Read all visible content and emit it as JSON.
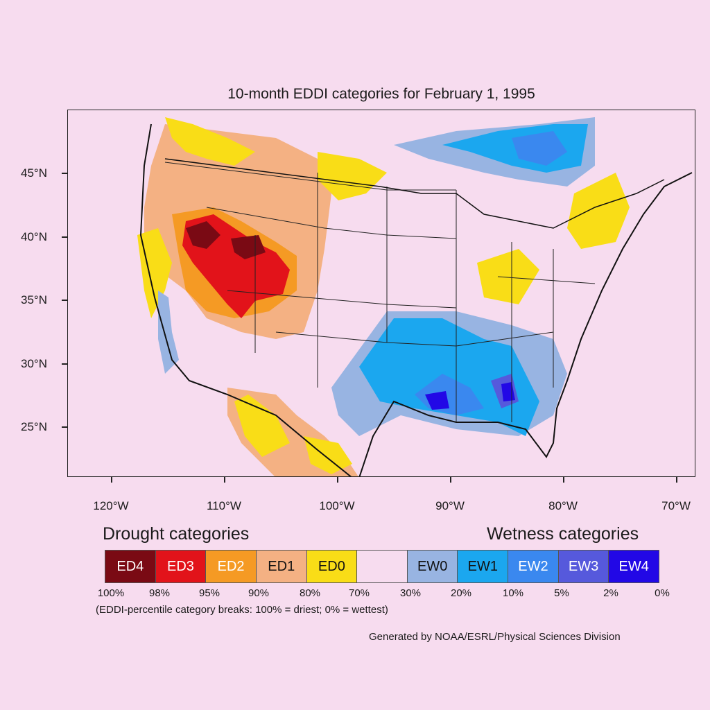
{
  "title": "10-month EDDI categories for February 1, 1995",
  "map": {
    "lat_labels": [
      {
        "text": "45°N",
        "lat": 45
      },
      {
        "text": "40°N",
        "lat": 40
      },
      {
        "text": "35°N",
        "lat": 35
      },
      {
        "text": "30°N",
        "lat": 30
      },
      {
        "text": "25°N",
        "lat": 25
      }
    ],
    "lon_labels": [
      {
        "text": "120°W",
        "lon": -120
      },
      {
        "text": "110°W",
        "lon": -110
      },
      {
        "text": "100°W",
        "lon": -100
      },
      {
        "text": "90°W",
        "lon": -90
      },
      {
        "text": "80°W",
        "lon": -80
      },
      {
        "text": "70°W",
        "lon": -70
      }
    ],
    "lon_range": [
      -124,
      -68.5
    ],
    "lat_range": [
      20.9,
      49.7
    ],
    "colors": {
      "ED4": "#7a0a14",
      "ED3": "#e2131a",
      "ED2": "#f59a24",
      "ED1": "#f4b183",
      "ED0": "#f9dd17",
      "NONE": "#f7dcef",
      "EW0": "#98b4e2",
      "EW1": "#1ba7ef",
      "EW2": "#3a88ef",
      "EW3": "#5659dc",
      "EW4": "#2208e6"
    }
  },
  "legend": {
    "drought_heading": "Drought categories",
    "wetness_heading": "Wetness categories",
    "categories": [
      {
        "label": "ED4",
        "color": "#7a0a14",
        "text_color": "#ffffff"
      },
      {
        "label": "ED3",
        "color": "#e2131a",
        "text_color": "#ffffff"
      },
      {
        "label": "ED2",
        "color": "#f59a24",
        "text_color": "#ffffff"
      },
      {
        "label": "ED1",
        "color": "#f4b183",
        "text_color": "#111111"
      },
      {
        "label": "ED0",
        "color": "#f9dd17",
        "text_color": "#111111"
      },
      {
        "label": "",
        "color": "#f7dcef",
        "text_color": "#111111"
      },
      {
        "label": "EW0",
        "color": "#98b4e2",
        "text_color": "#111111"
      },
      {
        "label": "EW1",
        "color": "#1ba7ef",
        "text_color": "#111111"
      },
      {
        "label": "EW2",
        "color": "#3a88ef",
        "text_color": "#ffffff"
      },
      {
        "label": "EW3",
        "color": "#5659dc",
        "text_color": "#ffffff"
      },
      {
        "label": "EW4",
        "color": "#2208e6",
        "text_color": "#ffffff"
      }
    ],
    "breaks": [
      "100%",
      "98%",
      "95%",
      "90%",
      "80%",
      "70%",
      "30%",
      "20%",
      "10%",
      "5%",
      "2%",
      "0%"
    ],
    "note": "(EDDI-percentile category breaks: 100% = driest; 0% = wettest)"
  },
  "credit": "Generated by NOAA/ESRL/Physical Sciences Division"
}
